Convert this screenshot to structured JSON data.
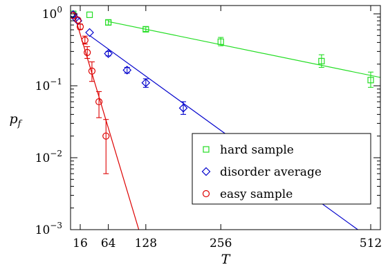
{
  "chart_data": {
    "type": "scatter",
    "xlabel": "T",
    "ylabel": "p_f",
    "xlim": [
      0,
      540
    ],
    "ylim": [
      0.001,
      1.1
    ],
    "yscale": "log",
    "x_ticks": [
      16,
      64,
      128,
      256,
      512
    ],
    "y_ticks": [
      {
        "value": 1,
        "label": "10",
        "exp": "0"
      },
      {
        "value": 0.1,
        "label": "10",
        "exp": "−1"
      },
      {
        "value": 0.01,
        "label": "10",
        "exp": "−2"
      },
      {
        "value": 0.001,
        "label": "10",
        "exp": "−3"
      }
    ],
    "grid": false,
    "legend_position": "lower-right",
    "series": [
      {
        "name": "hard sample",
        "marker": "square",
        "color": "#22dd22",
        "points": [
          {
            "x": 4,
            "y": 1.0,
            "lo": 1.0,
            "hi": 1.0
          },
          {
            "x": 32,
            "y": 0.97,
            "lo": 0.97,
            "hi": 0.97
          },
          {
            "x": 64,
            "y": 0.76,
            "lo": 0.7,
            "hi": 0.82
          },
          {
            "x": 128,
            "y": 0.61,
            "lo": 0.57,
            "hi": 0.66
          },
          {
            "x": 256,
            "y": 0.41,
            "lo": 0.36,
            "hi": 0.47
          },
          {
            "x": 428,
            "y": 0.22,
            "lo": 0.18,
            "hi": 0.27
          },
          {
            "x": 512,
            "y": 0.12,
            "lo": 0.095,
            "hi": 0.155
          }
        ],
        "fit": [
          {
            "x": 64,
            "y": 0.78
          },
          {
            "x": 540,
            "y": 0.125
          }
        ]
      },
      {
        "name": "disorder average",
        "marker": "diamond",
        "color": "#0000cc",
        "points": [
          {
            "x": 4,
            "y": 0.98,
            "lo": 0.98,
            "hi": 0.98
          },
          {
            "x": 8,
            "y": 0.87,
            "lo": 0.87,
            "hi": 0.87
          },
          {
            "x": 12,
            "y": 0.8,
            "lo": 0.8,
            "hi": 0.8
          },
          {
            "x": 32,
            "y": 0.55,
            "lo": 0.55,
            "hi": 0.55
          },
          {
            "x": 64,
            "y": 0.28,
            "lo": 0.26,
            "hi": 0.3
          },
          {
            "x": 96,
            "y": 0.165,
            "lo": 0.15,
            "hi": 0.18
          },
          {
            "x": 128,
            "y": 0.11,
            "lo": 0.095,
            "hi": 0.125
          },
          {
            "x": 192,
            "y": 0.049,
            "lo": 0.04,
            "hi": 0.06
          }
        ],
        "fit": [
          {
            "x": 32,
            "y": 0.5
          },
          {
            "x": 490,
            "y": 0.001
          }
        ]
      },
      {
        "name": "easy sample",
        "marker": "circle",
        "color": "#dd0000",
        "points": [
          {
            "x": 4,
            "y": 0.95,
            "lo": 0.95,
            "hi": 0.95
          },
          {
            "x": 12,
            "y": 0.82,
            "lo": 0.82,
            "hi": 0.82
          },
          {
            "x": 16,
            "y": 0.66,
            "lo": 0.61,
            "hi": 0.72
          },
          {
            "x": 24,
            "y": 0.43,
            "lo": 0.38,
            "hi": 0.49
          },
          {
            "x": 28,
            "y": 0.29,
            "lo": 0.24,
            "hi": 0.35
          },
          {
            "x": 36,
            "y": 0.16,
            "lo": 0.115,
            "hi": 0.215
          },
          {
            "x": 48,
            "y": 0.06,
            "lo": 0.036,
            "hi": 0.083
          },
          {
            "x": 60,
            "y": 0.02,
            "lo": 0.006,
            "hi": 0.034
          }
        ],
        "fit": [
          {
            "x": 4,
            "y": 1.1
          },
          {
            "x": 116,
            "y": 0.001
          }
        ]
      }
    ]
  }
}
